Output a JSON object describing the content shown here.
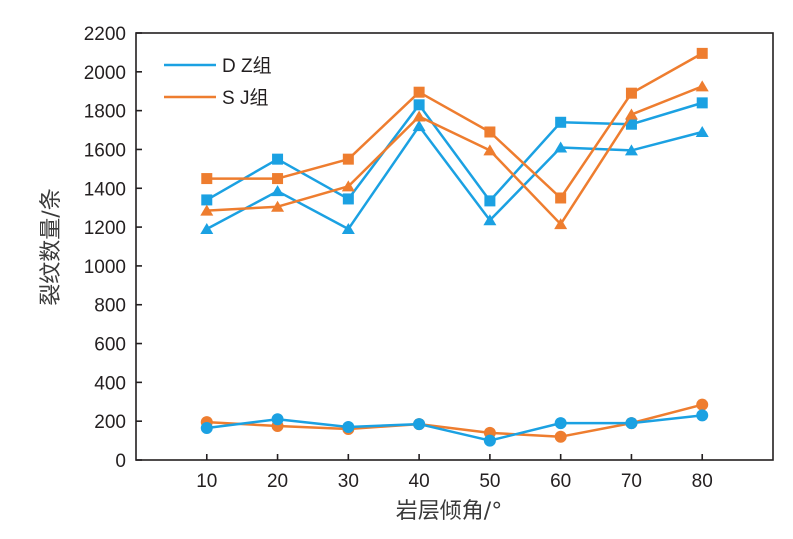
{
  "chart_data": {
    "type": "line",
    "title": "",
    "xlabel": "岩层倾角/°",
    "ylabel": "裂纹数量/条",
    "x": [
      10,
      20,
      30,
      40,
      50,
      60,
      70,
      80
    ],
    "x_ticks": [
      "10",
      "20",
      "30",
      "40",
      "50",
      "60",
      "70",
      "80"
    ],
    "xlim": [
      0,
      90
    ],
    "y_ticks": [
      "0",
      "200",
      "400",
      "600",
      "800",
      "1000",
      "1200",
      "1400",
      "1600",
      "1800",
      "2000",
      "2200"
    ],
    "ylim": [
      0,
      2200
    ],
    "grid": false,
    "legend": {
      "placement": "top-left",
      "entries": [
        {
          "label": "D Z组",
          "color": "#1ba1e2"
        },
        {
          "label": "S J组",
          "color": "#ee7d2f"
        }
      ]
    },
    "colors": {
      "DZ": "#1ba1e2",
      "SJ": "#ee7d2f",
      "axis": "#231f20"
    },
    "series": [
      {
        "name": "DZ-square",
        "group": "D Z组",
        "marker": "square",
        "color": "#1ba1e2",
        "values": [
          1340,
          1550,
          1345,
          1830,
          1335,
          1740,
          1730,
          1840
        ]
      },
      {
        "name": "DZ-triangle",
        "group": "D Z组",
        "marker": "triangle",
        "color": "#1ba1e2",
        "values": [
          1190,
          1385,
          1190,
          1720,
          1235,
          1610,
          1595,
          1690
        ]
      },
      {
        "name": "SJ-square",
        "group": "S J组",
        "marker": "square",
        "color": "#ee7d2f",
        "values": [
          1450,
          1450,
          1550,
          1895,
          1690,
          1350,
          1890,
          2095
        ]
      },
      {
        "name": "SJ-triangle",
        "group": "S J组",
        "marker": "triangle",
        "color": "#ee7d2f",
        "values": [
          1285,
          1305,
          1410,
          1770,
          1595,
          1215,
          1780,
          1925
        ]
      },
      {
        "name": "SJ-circle",
        "group": "S J组",
        "marker": "circle",
        "color": "#ee7d2f",
        "values": [
          195,
          175,
          160,
          185,
          140,
          120,
          190,
          285
        ]
      },
      {
        "name": "DZ-circle",
        "group": "D Z组",
        "marker": "circle",
        "color": "#1ba1e2",
        "values": [
          165,
          210,
          170,
          185,
          100,
          190,
          190,
          230
        ]
      }
    ]
  }
}
